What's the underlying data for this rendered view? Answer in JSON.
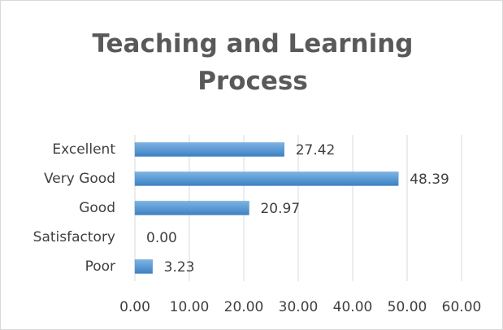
{
  "chart_data": {
    "type": "bar",
    "orientation": "horizontal",
    "title": "Teaching and Learning Process",
    "categories": [
      "Excellent",
      "Very Good",
      "Good",
      "Satisfactory",
      "Poor"
    ],
    "values": [
      27.42,
      48.39,
      20.97,
      0,
      3.23
    ],
    "value_labels": [
      "27.42",
      "48.39",
      "20.97",
      "0.00",
      "3.23"
    ],
    "color": "#5b9bd5",
    "xlim": [
      0,
      60
    ],
    "xticks": [
      {
        "value": 0,
        "label": "0.00"
      },
      {
        "value": 10,
        "label": "10.00"
      },
      {
        "value": 20,
        "label": "20.00"
      },
      {
        "value": 30,
        "label": "30.00"
      },
      {
        "value": 40,
        "label": "40.00"
      },
      {
        "value": 50,
        "label": "50.00"
      },
      {
        "value": 60,
        "label": "60.00"
      }
    ],
    "grid": true
  }
}
